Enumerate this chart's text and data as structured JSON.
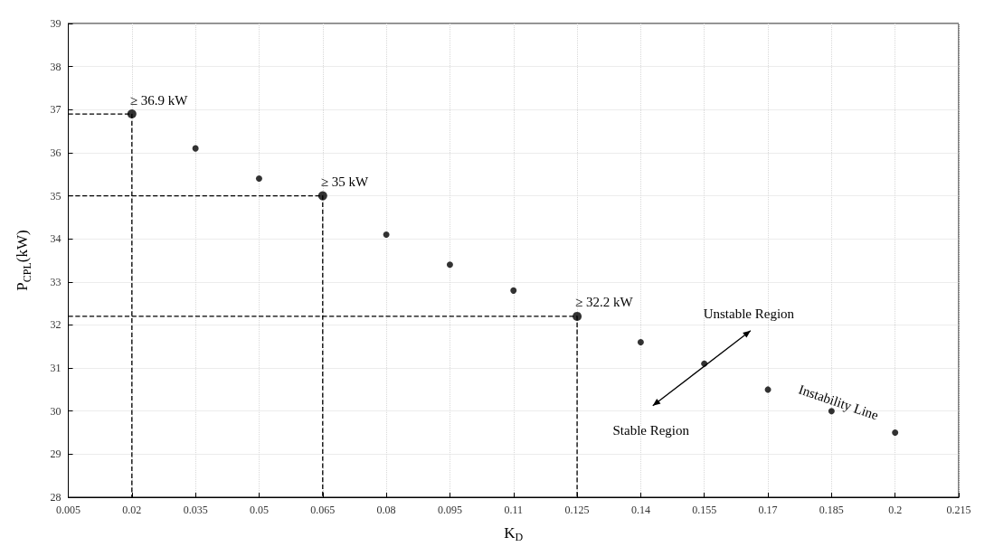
{
  "chart_data": {
    "type": "scatter",
    "xlabel": "K$_{D}$",
    "ylabel": "P$_{CPL}$(kW)",
    "xlim": [
      0.005,
      0.215
    ],
    "xticks": [
      0.005,
      0.02,
      0.035,
      0.05,
      0.065,
      0.08,
      0.095,
      0.11,
      0.125,
      0.14,
      0.155,
      0.17,
      0.185,
      0.2,
      0.215
    ],
    "ylim": [
      28,
      39
    ],
    "yticks": [
      28,
      29,
      30,
      31,
      32,
      33,
      34,
      35,
      36,
      37,
      38,
      39
    ],
    "grid": true,
    "marker": "circle",
    "series": [
      {
        "color": "#000000",
        "x": [
          0.035,
          0.05,
          0.08,
          0.095,
          0.11,
          0.14,
          0.155,
          0.17,
          0.185,
          0.2
        ],
        "values": [
          36.1,
          35.4,
          34.1,
          33.4,
          32.8,
          31.6,
          31.1,
          30.5,
          30.0,
          29.5
        ]
      },
      {
        "color": "#000000",
        "x": [
          0.02,
          0.065,
          0.125
        ],
        "values": [
          36.9,
          35,
          32.2
        ]
      },
      {
        "type": "line",
        "line_style": "dashed",
        "marker": "none",
        "color": "#000000",
        "x": [
          0.005,
          0.02,
          0.02
        ],
        "values": [
          36.9,
          36.9,
          28
        ]
      },
      {
        "type": "line",
        "line_style": "dashed",
        "marker": "none",
        "color": "#000000",
        "x": [
          0.005,
          0.065,
          0.065
        ],
        "values": [
          35,
          35,
          28
        ]
      },
      {
        "type": "line",
        "line_style": "dashed",
        "marker": "none",
        "color": "#000000",
        "x": [
          0.005,
          0.125,
          0.125
        ],
        "values": [
          32.2,
          32.2,
          28
        ]
      }
    ],
    "annotations": [
      {
        "text": "≥ 36.9 kW",
        "x": 0.02,
        "y": 36.9
      },
      {
        "text": "≥ 35 kW",
        "x": 0.065,
        "y": 35
      },
      {
        "text": "≥ 32.2 kW",
        "x": 0.125,
        "y": 32.2
      },
      "Unstable Region",
      "Stable Region",
      "Instability Line"
    ]
  }
}
